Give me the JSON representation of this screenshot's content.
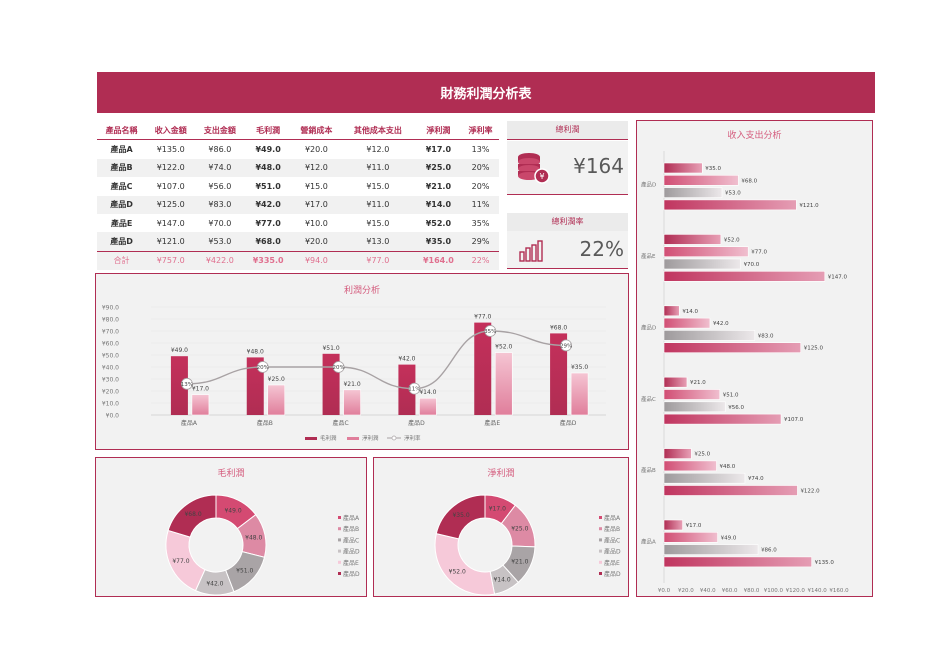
{
  "title": "財務利潤分析表",
  "table": {
    "headers": [
      "產品名稱",
      "收入金額",
      "支出金額",
      "毛利潤",
      "營銷成本",
      "其他成本支出",
      "淨利潤",
      "淨利率"
    ],
    "rows": [
      [
        "產品A",
        "¥135.0",
        "¥86.0",
        "¥49.0",
        "¥20.0",
        "¥12.0",
        "¥17.0",
        "13%"
      ],
      [
        "產品B",
        "¥122.0",
        "¥74.0",
        "¥48.0",
        "¥12.0",
        "¥11.0",
        "¥25.0",
        "20%"
      ],
      [
        "產品C",
        "¥107.0",
        "¥56.0",
        "¥51.0",
        "¥15.0",
        "¥15.0",
        "¥21.0",
        "20%"
      ],
      [
        "產品D",
        "¥125.0",
        "¥83.0",
        "¥42.0",
        "¥17.0",
        "¥11.0",
        "¥14.0",
        "11%"
      ],
      [
        "產品E",
        "¥147.0",
        "¥70.0",
        "¥77.0",
        "¥10.0",
        "¥15.0",
        "¥52.0",
        "35%"
      ],
      [
        "產品D",
        "¥121.0",
        "¥53.0",
        "¥68.0",
        "¥20.0",
        "¥13.0",
        "¥35.0",
        "29%"
      ]
    ],
    "total": [
      "合計",
      "¥757.0",
      "¥422.0",
      "¥335.0",
      "¥94.0",
      "¥77.0",
      "¥164.0",
      "22%"
    ]
  },
  "kpi": {
    "profit_label": "總利潤",
    "profit_value": "¥164",
    "rate_label": "總利潤率",
    "rate_value": "22%"
  },
  "colors": {
    "brand": "#b02d53",
    "accent": "#d45a7c",
    "light": "#e7a1b6"
  },
  "icons": [
    "coin-stack-icon",
    "bar-chart-icon"
  ],
  "chart_data": [
    {
      "id": "profit",
      "type": "bar",
      "title": "利潤分析",
      "categories": [
        "產品A",
        "產品B",
        "產品C",
        "產品D",
        "產品E",
        "產品D"
      ],
      "series": [
        {
          "name": "毛利潤",
          "values": [
            49,
            48,
            51,
            42,
            77,
            68
          ]
        },
        {
          "name": "淨利潤",
          "values": [
            17,
            25,
            21,
            14,
            52,
            35
          ]
        },
        {
          "name": "淨利率",
          "type": "line",
          "values": [
            "13%",
            "20%",
            "20%",
            "11%",
            "35%",
            "29%"
          ]
        }
      ],
      "yticks": [
        "¥0.0",
        "¥10.0",
        "¥20.0",
        "¥30.0",
        "¥40.0",
        "¥50.0",
        "¥60.0",
        "¥70.0",
        "¥80.0",
        "¥90.0"
      ],
      "ylim": [
        0,
        90
      ],
      "legend": "bottom"
    },
    {
      "id": "gross",
      "type": "pie",
      "title": "毛利潤",
      "labels": [
        "產品A",
        "產品B",
        "產品C",
        "產品D",
        "產品E",
        "產品D"
      ],
      "values": [
        49,
        48,
        51,
        42,
        77,
        68
      ],
      "legend": "right"
    },
    {
      "id": "net",
      "type": "pie",
      "title": "淨利潤",
      "labels": [
        "產品A",
        "產品B",
        "產品C",
        "產品D",
        "產品E",
        "產品D"
      ],
      "values": [
        17,
        25,
        21,
        14,
        52,
        35
      ],
      "legend": "right"
    },
    {
      "id": "income",
      "type": "bar",
      "orientation": "horizontal",
      "title": "收入支出分析",
      "categories": [
        "產品D",
        "產品E",
        "產品D",
        "產品C",
        "產品B",
        "產品A"
      ],
      "series": [
        {
          "values": [
            35,
            52,
            14,
            21,
            25,
            17
          ]
        },
        {
          "values": [
            68,
            77,
            42,
            51,
            48,
            49
          ]
        },
        {
          "values": [
            53,
            70,
            83,
            56,
            74,
            86
          ]
        },
        {
          "values": [
            121,
            147,
            125,
            107,
            122,
            135
          ]
        }
      ],
      "xticks": [
        "¥0.0",
        "¥20.0",
        "¥40.0",
        "¥60.0",
        "¥80.0",
        "¥100.0",
        "¥120.0",
        "¥140.0",
        "¥160.0"
      ],
      "xlim": [
        0,
        160
      ]
    }
  ]
}
